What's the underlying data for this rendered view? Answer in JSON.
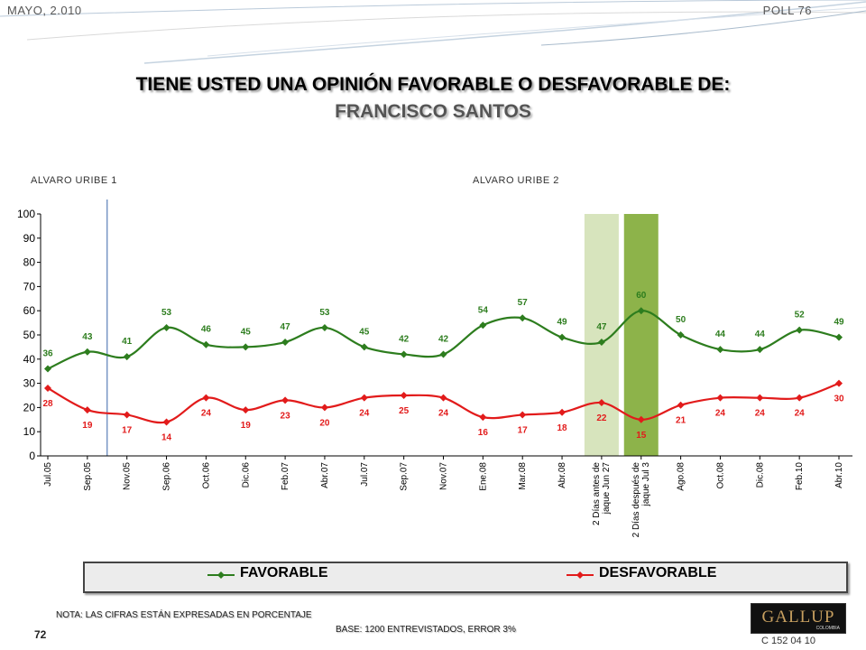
{
  "header": {
    "date": "MAYO, 2.010",
    "poll": "POLL 76"
  },
  "title": {
    "line1": "TIENE USTED UNA OPINIÓN FAVORABLE O DESFAVORABLE DE:",
    "line2": "FRANCISCO SANTOS"
  },
  "periods": {
    "first": "ALVARO URIBE 1",
    "second": "ALVARO URIBE 2"
  },
  "legend": {
    "favorable": "FAVORABLE",
    "desfavorable": "DESFAVORABLE"
  },
  "footer": {
    "note": "NOTA: LAS CIFRAS ESTÁN EXPRESADAS EN PORCENTAJE",
    "page": "72",
    "base": "BASE: 1200 ENTREVISTADOS, ERROR 3%",
    "code": "C 152 04 10",
    "logo": "GALLUP",
    "logo_sub": "COLOMBIA"
  },
  "colors": {
    "favorable": "#2d7d1e",
    "desfavorable": "#e21b1b",
    "highlight_light": "#d7e4bd",
    "highlight_dark": "#8db34a",
    "divider": "#5a7fb8"
  },
  "chart_data": {
    "type": "line",
    "categories": [
      "Jul.05",
      "Sep.05",
      "Nov.05",
      "Sep.06",
      "Oct.06",
      "Dic.06",
      "Feb.07",
      "Abr.07",
      "Jul.07",
      "Sep.07",
      "Nov.07",
      "Ene.08",
      "Mar.08",
      "Abr.08",
      "2 Días antes de jaque Jun 27",
      "2 Días después de jaque Jul 3",
      "Ago.08",
      "Oct.08",
      "Dic.08",
      "Feb.10",
      "Abr.10"
    ],
    "series": [
      {
        "name": "FAVORABLE",
        "values": [
          36,
          43,
          41,
          53,
          46,
          45,
          47,
          53,
          45,
          42,
          42,
          54,
          57,
          49,
          47,
          60,
          50,
          44,
          44,
          52,
          49
        ]
      },
      {
        "name": "DESFAVORABLE",
        "values": [
          28,
          19,
          17,
          14,
          24,
          19,
          23,
          20,
          24,
          25,
          24,
          16,
          17,
          18,
          22,
          15,
          21,
          24,
          24,
          24,
          30
        ]
      }
    ],
    "ylim": [
      0,
      100
    ],
    "yticks": [
      0,
      10,
      20,
      30,
      40,
      50,
      60,
      70,
      80,
      90,
      100
    ],
    "highlighted_categories": [
      14,
      15
    ],
    "period_divider_after": 1,
    "grid": false,
    "legend_position": "bottom"
  }
}
